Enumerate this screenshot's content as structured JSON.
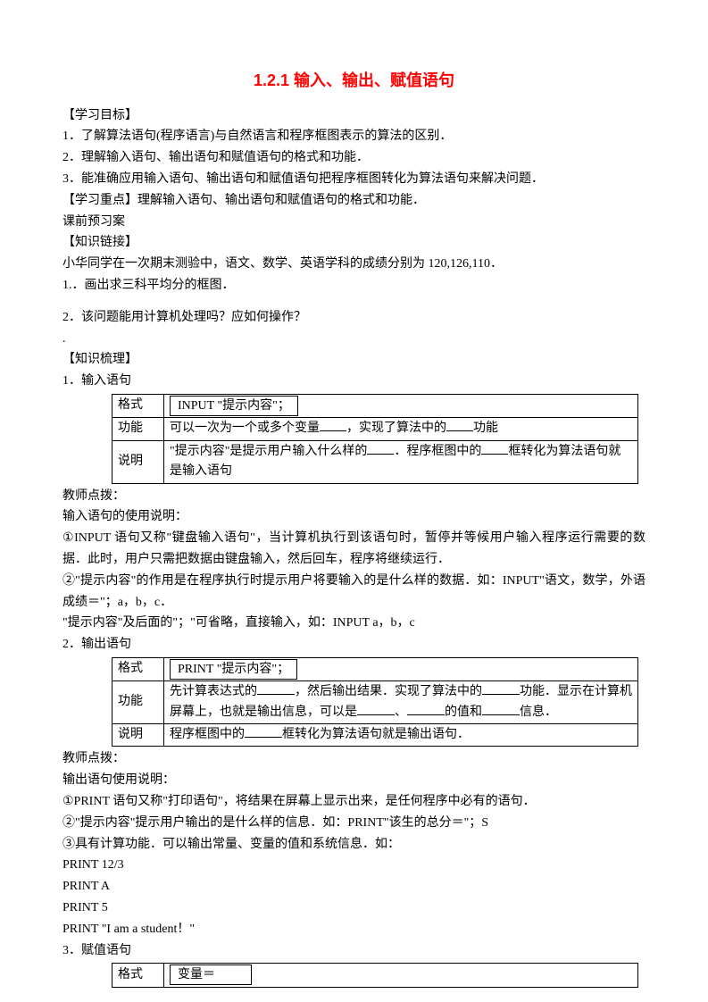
{
  "title": "1.2.1 输入、输出、赋值语句",
  "sections": {
    "learning_goals": {
      "heading": "【学习目标】",
      "items": [
        "1．了解算法语句(程序语言)与自然语言和程序框图表示的算法的区别．",
        "2．理解输入语句、输出语句和赋值语句的格式和功能．",
        "3．能准确应用输入语句、输出语句和赋值语句把程序框图转化为算法语句来解决问题．"
      ]
    },
    "key_point": "【学习重点】理解输入语句、输出语句和赋值语句的格式和功能．",
    "pre_class": "课前预习案",
    "knowledge_link": {
      "heading": "【知识链接】",
      "intro": "小华同学在一次期末测验中，语文、数学、英语学科的成绩分别为 120,126,110．",
      "q1": "1.．画出求三科平均分的框图．",
      "q2": "2．该问题能用计算机处理吗？应如何操作？"
    },
    "knowledge_sort": {
      "heading": "【知识梳理】",
      "section1": {
        "title": "1．输入语句",
        "table": {
          "row1": {
            "label": "格式",
            "content": "INPUT \"提示内容\"；"
          },
          "row2": {
            "label": "功能",
            "prefix": "可以一次为一个或多个变量",
            "suffix": "，实现了算法中的",
            "suffix2": "功能"
          },
          "row3": {
            "label": "说明",
            "prefix": "\"提示内容\"是提示用户输入什么样的",
            "middle": "．程序框图中的",
            "suffix": "框转化为算法语句就是输入语句"
          }
        }
      },
      "teacher_note1": "教师点拨：",
      "input_desc": {
        "heading": "输入语句的使用说明：",
        "line1": "①INPUT 语句又称\"键盘输入语句\"，当计算机执行到该语句时，暂停并等候用户输入程序运行需要的数据．此时，用户只需把数据由键盘输入，然后回车，程序将继续运行．",
        "line2": "②\"提示内容\"的作用是在程序执行时提示用户将要输入的是什么样的数据．如：INPUT\"语文，数学，外语成绩＝\"；a，b，c．",
        "line3": "\"提示内容\"及后面的\"；\"可省略，直接输入，如：INPUT a，b，c"
      },
      "section2": {
        "title": "2．输出语句",
        "table": {
          "row1": {
            "label": "格式",
            "content": "PRINT \"提示内容\"；"
          },
          "row2": {
            "label": "功能",
            "prefix": "先计算表达式的",
            "mid1": "，然后输出结果．实现了算法中的",
            "mid2": "功能．显示在计算机屏幕上，也就是输出信息，可以是",
            "mid3": "、",
            "mid4": "的值和",
            "suffix": "信息．"
          },
          "row3": {
            "label": "说明",
            "prefix": "程序框图中的",
            "suffix": "框转化为算法语句就是输出语句．"
          }
        }
      },
      "teacher_note2": "教师点拨：",
      "output_desc": {
        "heading": "输出语句使用说明：",
        "line1": "①PRINT 语句又称\"打印语句\"，将结果在屏幕上显示出来，是任何程序中必有的语句．",
        "line2": "②\"提示内容\"提示用户输出的是什么样的信息．如：PRINT\"该生的总分＝\"；S",
        "line3": "③具有计算功能．可以输出常量、变量的值和系统信息．如：",
        "examples": [
          "PRINT 12/3",
          "PRINT A",
          "PRINT 5",
          "PRINT \"I am a student！\""
        ]
      },
      "section3": {
        "title": "3．赋值语句",
        "table": {
          "row1": {
            "label": "格式",
            "content": "变量＝"
          }
        }
      }
    }
  },
  "colors": {
    "title_color": "#ff0000",
    "text_color": "#000000",
    "background": "#ffffff",
    "border_color": "#000000"
  },
  "typography": {
    "body_font": "SimSun",
    "title_font": "SimHei",
    "body_size": 14,
    "title_size": 18
  }
}
